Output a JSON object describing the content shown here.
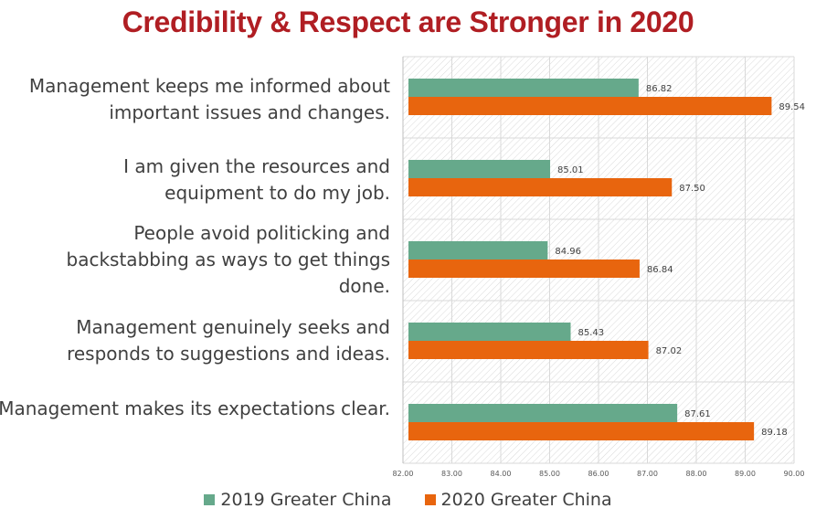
{
  "title": "Credibility & Respect are Stronger in 2020",
  "colors": {
    "title": "#b01e23",
    "series_2019": "#66a98b",
    "series_2020": "#e8650e"
  },
  "chart_data": {
    "type": "bar",
    "orientation": "horizontal",
    "categories": [
      "Management keeps me informed about important issues and changes.",
      "I am given the resources and equipment to do my job.",
      "People avoid politicking and backstabbing as ways to get things done.",
      "Management genuinely seeks and responds to suggestions and ideas.",
      "Management makes its expectations clear."
    ],
    "series": [
      {
        "name": "2019 Greater China",
        "values": [
          86.82,
          85.01,
          84.96,
          85.43,
          87.61
        ],
        "labels": [
          "86.82",
          "85.01",
          "84.96",
          "85.43",
          "87.61"
        ]
      },
      {
        "name": "2020 Greater China",
        "values": [
          89.54,
          87.5,
          86.84,
          87.02,
          89.18
        ],
        "labels": [
          "89.54",
          "87.50",
          "86.84",
          "87.02",
          "89.18"
        ]
      }
    ],
    "xlim": [
      82,
      90
    ],
    "xticks": [
      "82.00",
      "83.00",
      "84.00",
      "85.00",
      "86.00",
      "87.00",
      "88.00",
      "89.00",
      "90.00"
    ],
    "grid": true,
    "legend": "bottom"
  }
}
